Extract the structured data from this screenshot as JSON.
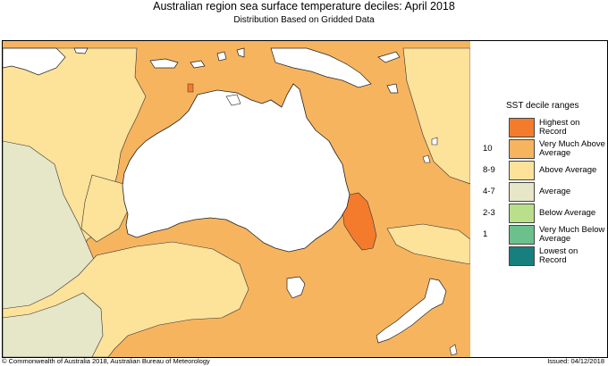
{
  "header": {
    "title": "Australian region sea surface temperature deciles:  April 2018",
    "subtitle": "Distribution Based on Gridded Data"
  },
  "legend": {
    "title": "SST decile ranges",
    "items": [
      {
        "range": "",
        "label": "Highest on Record",
        "color": "#f47b2b"
      },
      {
        "range": "10",
        "label": "Very Much Above Average",
        "color": "#f7b45f"
      },
      {
        "range": "8-9",
        "label": "Above Average",
        "color": "#fde29a"
      },
      {
        "range": "4-7",
        "label": "Average",
        "color": "#e6e6c8"
      },
      {
        "range": "2-3",
        "label": "Below Average",
        "color": "#b9df8a"
      },
      {
        "range": "1",
        "label": "Very Much Below Average",
        "color": "#6cc08b"
      },
      {
        "range": "",
        "label": "Lowest on Record",
        "color": "#17807e"
      }
    ]
  },
  "footer": {
    "copyright": "© Commonwealth of Australia 2018, Australian Bureau of Meteorology",
    "issued": "Issued: 04/12/2018"
  }
}
